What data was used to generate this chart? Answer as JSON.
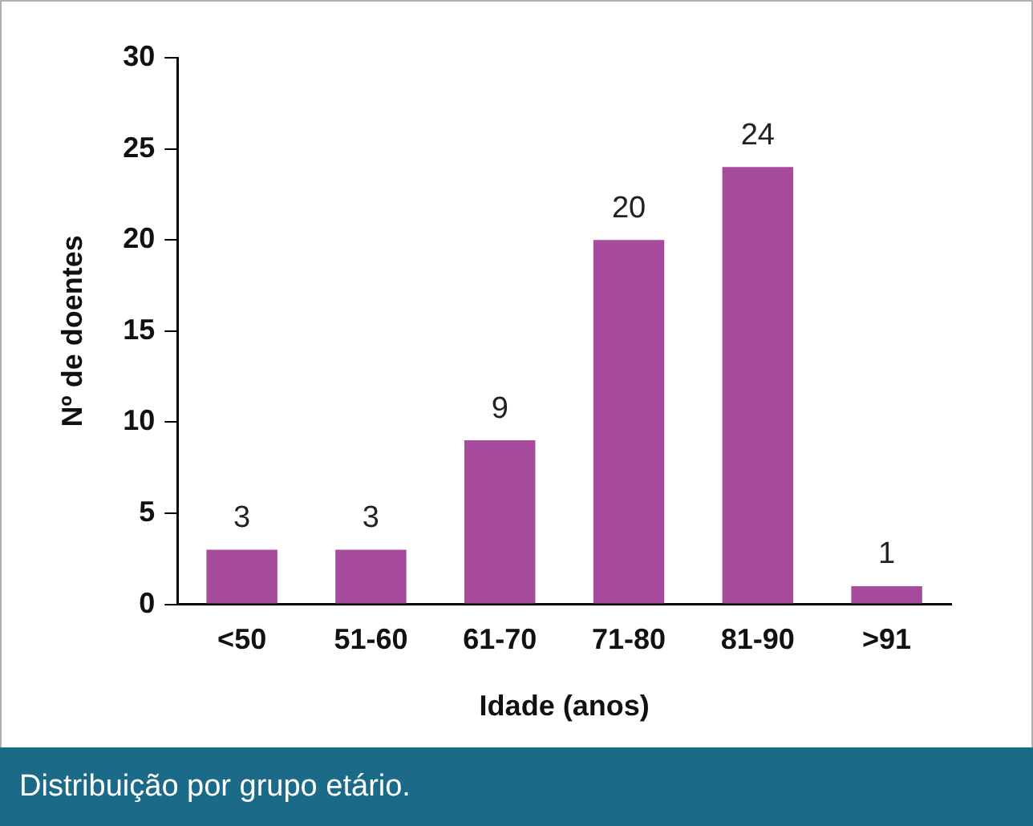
{
  "chart_data": {
    "type": "bar",
    "xlabel": "Idade (anos)",
    "ylabel": "Nº de doentes",
    "categories": [
      "<50",
      "51-60",
      "61-70",
      "71-80",
      "81-90",
      ">91"
    ],
    "values": [
      3,
      3,
      9,
      20,
      24,
      1
    ],
    "color": "#a64b9c",
    "ylim": [
      0,
      30
    ],
    "yticks": [
      0,
      5,
      10,
      15,
      20,
      25,
      30
    ],
    "grid": false,
    "legend": false,
    "data_labels": true,
    "annotations": [
      "Distribuição por grupo etário."
    ]
  }
}
